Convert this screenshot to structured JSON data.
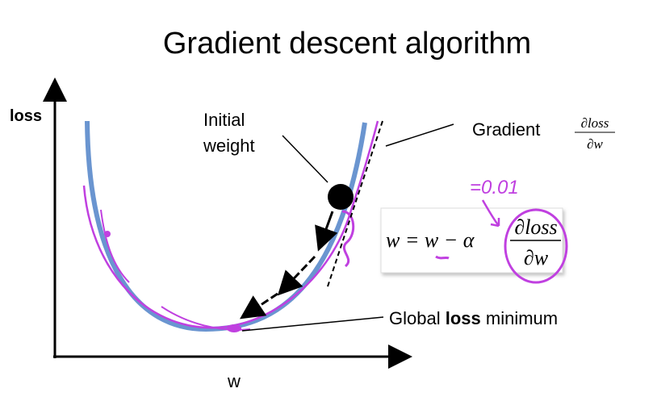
{
  "title": "Gradient descent algorithm",
  "axes": {
    "y_label": "loss",
    "x_label": "w"
  },
  "initial_weight": {
    "lines": [
      "Initial",
      "weight"
    ]
  },
  "gradient": {
    "label": "Gradient",
    "numerator": "∂loss",
    "denominator": "∂w"
  },
  "formula": {
    "lhs": "w = w − α",
    "numerator": "∂loss",
    "denominator": "∂w"
  },
  "annotation": "=0.01",
  "minimum": {
    "prefix": "Global",
    "bold": "loss",
    "suffix": "minimum"
  }
}
